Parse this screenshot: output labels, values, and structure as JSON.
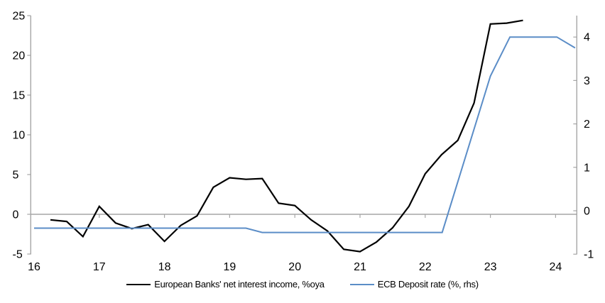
{
  "chart_data": {
    "type": "line",
    "title": "",
    "x_axis": {
      "tick_labels": [
        "16",
        "17",
        "18",
        "19",
        "20",
        "21",
        "22",
        "23",
        "24"
      ],
      "tick_values": [
        16,
        17,
        18,
        19,
        20,
        21,
        22,
        23,
        24
      ],
      "range": [
        15.95,
        24.32
      ]
    },
    "left_axis": {
      "ticks": [
        -5,
        0,
        5,
        10,
        15,
        20,
        25
      ],
      "range": [
        -5,
        25
      ]
    },
    "right_axis": {
      "ticks": [
        -1,
        0,
        1,
        2,
        3,
        4
      ],
      "range": [
        -1.05,
        4.5
      ]
    },
    "grid": "zero-line-only",
    "legend_position": "bottom-center",
    "axis_color": "#A6A6A6",
    "zero_line_color": "#A6A6A6",
    "series": [
      {
        "key": "nii-line",
        "name": "European Banks' net interest income, %oya",
        "axis": "left",
        "color": "#000000",
        "points": [
          [
            16.25,
            -0.7
          ],
          [
            16.5,
            -0.9
          ],
          [
            16.75,
            -2.8
          ],
          [
            17.0,
            1.0
          ],
          [
            17.25,
            -1.1
          ],
          [
            17.5,
            -1.8
          ],
          [
            17.75,
            -1.3
          ],
          [
            18.0,
            -3.4
          ],
          [
            18.25,
            -1.4
          ],
          [
            18.5,
            -0.2
          ],
          [
            18.75,
            3.4
          ],
          [
            19.0,
            4.6
          ],
          [
            19.25,
            4.4
          ],
          [
            19.5,
            4.5
          ],
          [
            19.75,
            1.4
          ],
          [
            20.0,
            1.1
          ],
          [
            20.25,
            -0.7
          ],
          [
            20.5,
            -2.1
          ],
          [
            20.75,
            -4.4
          ],
          [
            21.0,
            -4.7
          ],
          [
            21.25,
            -3.5
          ],
          [
            21.5,
            -1.7
          ],
          [
            21.75,
            1.0
          ],
          [
            22.0,
            5.1
          ],
          [
            22.25,
            7.5
          ],
          [
            22.5,
            9.3
          ],
          [
            22.75,
            14.0
          ],
          [
            23.0,
            23.95
          ],
          [
            23.25,
            24.05
          ],
          [
            23.5,
            24.4
          ]
        ]
      },
      {
        "key": "ecb-line",
        "name": "ECB Deposit rate (%, rhs)",
        "axis": "right",
        "color": "#5B8DC7",
        "points": [
          [
            16.0,
            -0.4
          ],
          [
            19.25,
            -0.4
          ],
          [
            19.5,
            -0.5
          ],
          [
            22.26,
            -0.5
          ],
          [
            23.0,
            3.1
          ],
          [
            23.3,
            4.0
          ],
          [
            24.02,
            4.0
          ],
          [
            24.3,
            3.75
          ]
        ]
      }
    ]
  }
}
